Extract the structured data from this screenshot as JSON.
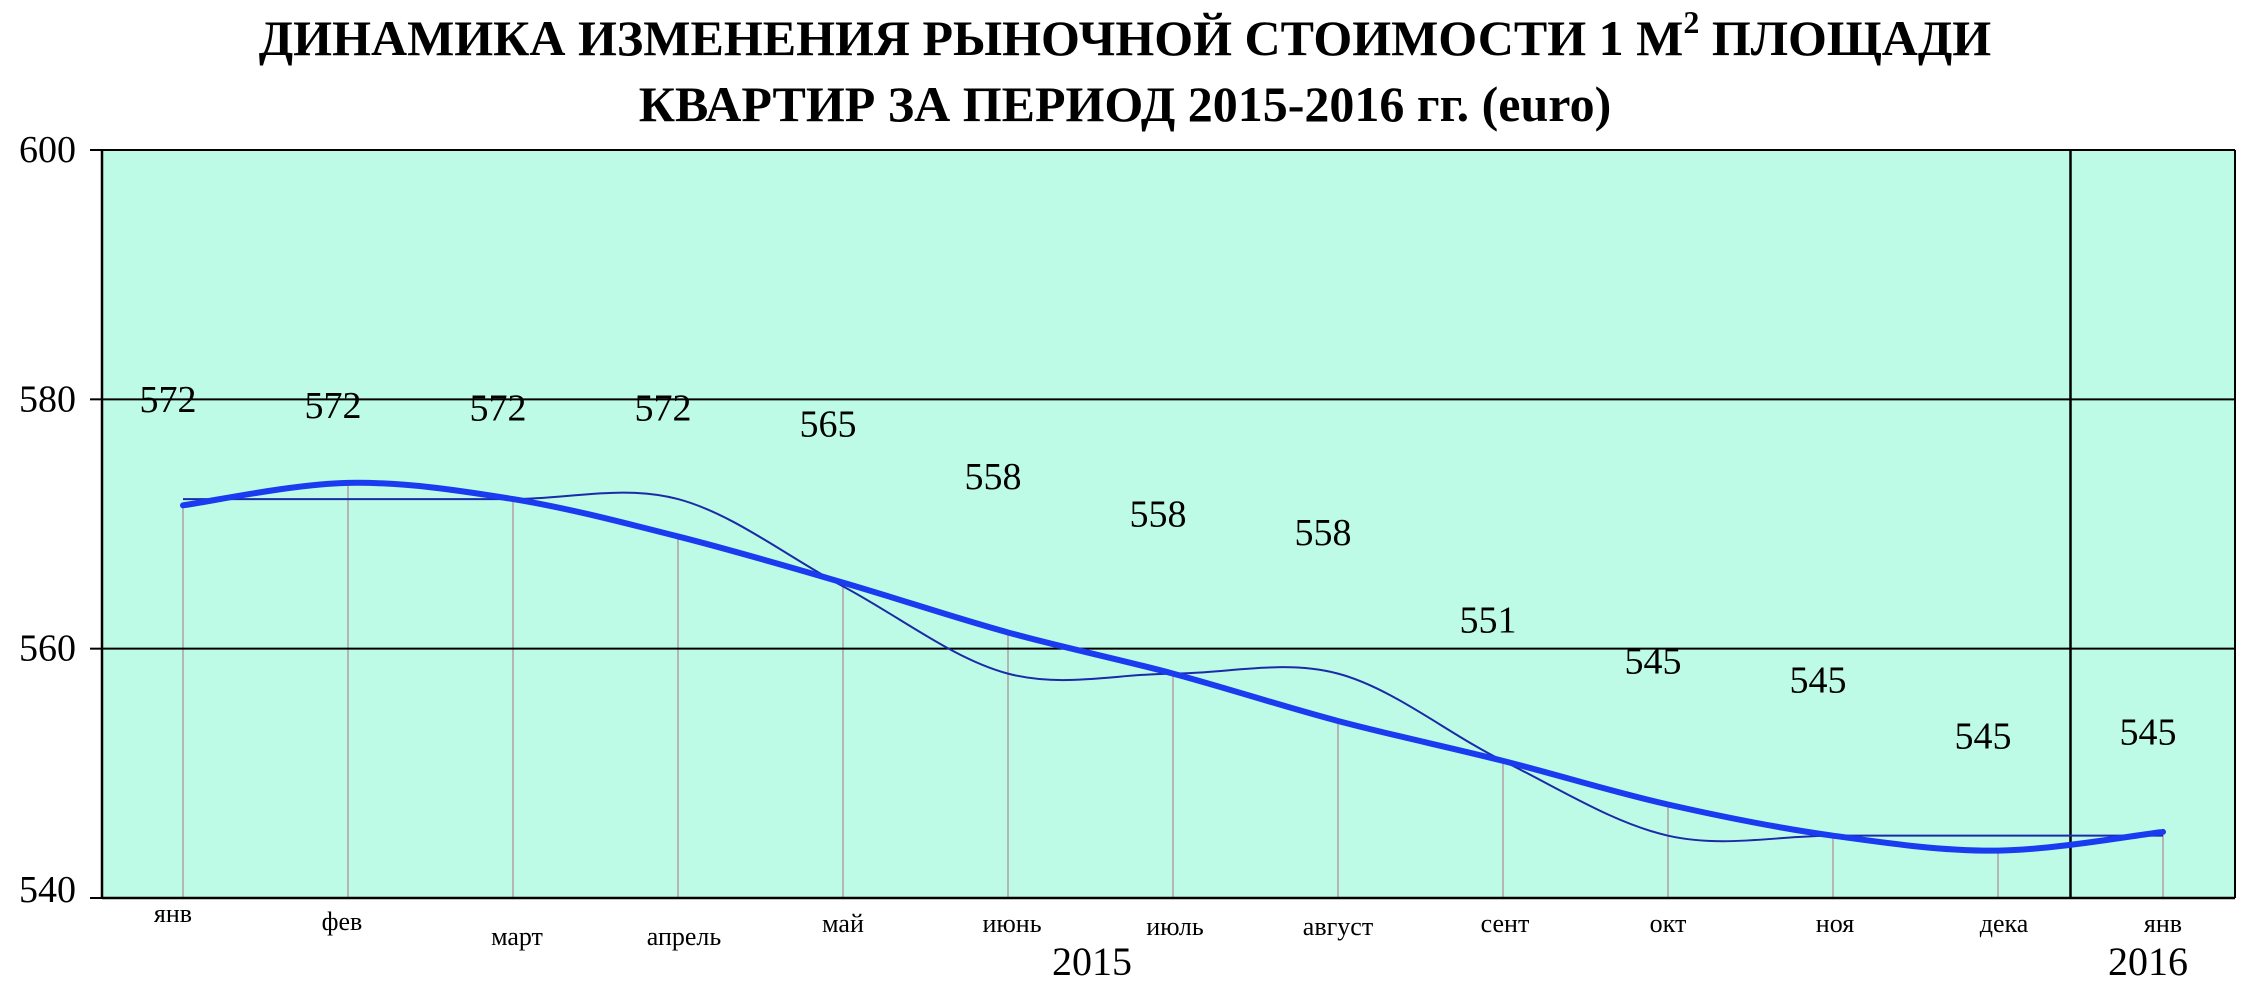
{
  "title": {
    "line1_prefix": "ДИНАМИКА ИЗМЕНЕНИЯ РЫНОЧНОЙ СТОИМОСТИ  1 М",
    "line1_sup": "2",
    "line1_suffix": " ПЛОЩАДИ",
    "line2": "КВАРТИР ЗА ПЕРИОД 2015-2016 гг. (euro)"
  },
  "colors": {
    "plot_bg": "#bdfbe6",
    "trend_line": "#1a3cf0",
    "value_line": "#1a2aa8",
    "drop_lines": "#b5b5b5",
    "grid": "#000000"
  },
  "chart_data": {
    "type": "line",
    "title": "ДИНАМИКА ИЗМЕНЕНИЯ РЫНОЧНОЙ СТОИМОСТИ 1 М2 ПЛОЩАДИ КВАРТИР ЗА ПЕРИОД 2015-2016 гг. (euro)",
    "xlabel": "",
    "ylabel": "",
    "categories": [
      "янв",
      "фев",
      "март",
      "апрель",
      "май",
      "июнь",
      "июль",
      "август",
      "сент",
      "окт",
      "ноя",
      "дека",
      "янв"
    ],
    "years": [
      {
        "label": "2015",
        "center_index": 5.6
      },
      {
        "label": "2016",
        "center_index": 12
      }
    ],
    "year_divider_index": 11.5,
    "ylim": [
      540,
      600
    ],
    "yticks": [
      540,
      560,
      580,
      600
    ],
    "grid": "horizontal",
    "series": [
      {
        "values": [
          572,
          572,
          572,
          572,
          565,
          558,
          558,
          558,
          551,
          545,
          545,
          545,
          545
        ],
        "style": "thin"
      },
      {
        "values": [
          571.5,
          573.3,
          572.0,
          569.0,
          565.3,
          561.3,
          558.0,
          554.2,
          551.0,
          547.5,
          545.0,
          543.8,
          545.3
        ],
        "style": "trend"
      }
    ],
    "data_labels": [
      "572",
      "572",
      "572",
      "572",
      "565",
      "558",
      "558",
      "558",
      "551",
      "545",
      "545",
      "545",
      "545"
    ],
    "data_label_levels": [
      579,
      578.5,
      578.3,
      578.3,
      577,
      572.8,
      569.8,
      568.3,
      561.3,
      558,
      556.5,
      552,
      552.3
    ]
  }
}
